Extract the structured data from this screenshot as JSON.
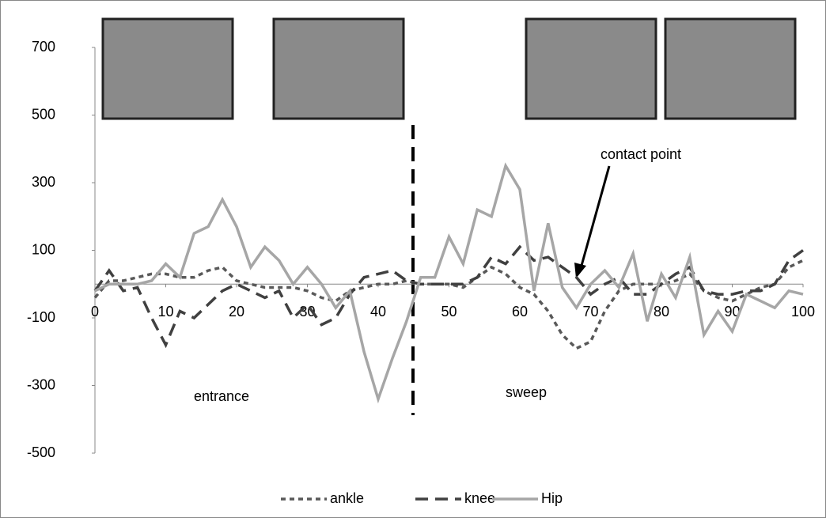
{
  "chart_data": {
    "type": "line",
    "x": [
      0,
      2,
      4,
      6,
      8,
      10,
      12,
      14,
      16,
      18,
      20,
      22,
      24,
      26,
      28,
      30,
      32,
      34,
      36,
      38,
      40,
      42,
      44,
      46,
      48,
      50,
      52,
      54,
      56,
      58,
      60,
      62,
      64,
      66,
      68,
      70,
      72,
      74,
      76,
      78,
      80,
      82,
      84,
      86,
      88,
      90,
      92,
      94,
      96,
      98,
      100
    ],
    "series": [
      {
        "name": "ankle",
        "color": "#595959",
        "dash": "short",
        "values": [
          -40,
          10,
          10,
          20,
          30,
          30,
          20,
          20,
          40,
          50,
          10,
          0,
          -10,
          -10,
          -10,
          -20,
          -40,
          -50,
          -20,
          -10,
          0,
          0,
          10,
          0,
          0,
          0,
          -10,
          20,
          50,
          30,
          -10,
          -30,
          -80,
          -150,
          -190,
          -170,
          -80,
          -20,
          0,
          0,
          0,
          10,
          30,
          -20,
          -40,
          -50,
          -30,
          -10,
          0,
          50,
          70
        ]
      },
      {
        "name": "knee",
        "color": "#404040",
        "dash": "long",
        "values": [
          -20,
          40,
          -20,
          -10,
          -100,
          -180,
          -80,
          -100,
          -60,
          -20,
          0,
          -20,
          -40,
          -20,
          -100,
          -60,
          -120,
          -100,
          -30,
          20,
          30,
          40,
          10,
          0,
          0,
          0,
          0,
          20,
          80,
          60,
          110,
          70,
          80,
          50,
          20,
          -30,
          0,
          20,
          -30,
          -30,
          0,
          30,
          50,
          -20,
          -30,
          -30,
          -20,
          -20,
          0,
          70,
          100
        ]
      },
      {
        "name": "Hip",
        "color": "#a6a6a6",
        "dash": "solid",
        "values": [
          -20,
          0,
          0,
          0,
          10,
          60,
          20,
          150,
          170,
          250,
          170,
          50,
          110,
          70,
          0,
          50,
          0,
          -70,
          -20,
          -200,
          -340,
          -220,
          -110,
          20,
          20,
          140,
          60,
          220,
          200,
          350,
          280,
          -20,
          180,
          -10,
          -70,
          0,
          40,
          -10,
          90,
          -110,
          30,
          -40,
          80,
          -150,
          -80,
          -140,
          -30,
          -50,
          -70,
          -20,
          -30
        ]
      }
    ],
    "xlim": [
      0,
      100
    ],
    "xticks": [
      0,
      10,
      20,
      30,
      40,
      50,
      60,
      70,
      80,
      90,
      100
    ],
    "ylim": [
      -500,
      700
    ],
    "yticks": [
      -500,
      -300,
      -100,
      100,
      300,
      500,
      700
    ],
    "annotations": [
      "entrance",
      "sweep",
      "contact point"
    ],
    "legend": "bottom"
  }
}
